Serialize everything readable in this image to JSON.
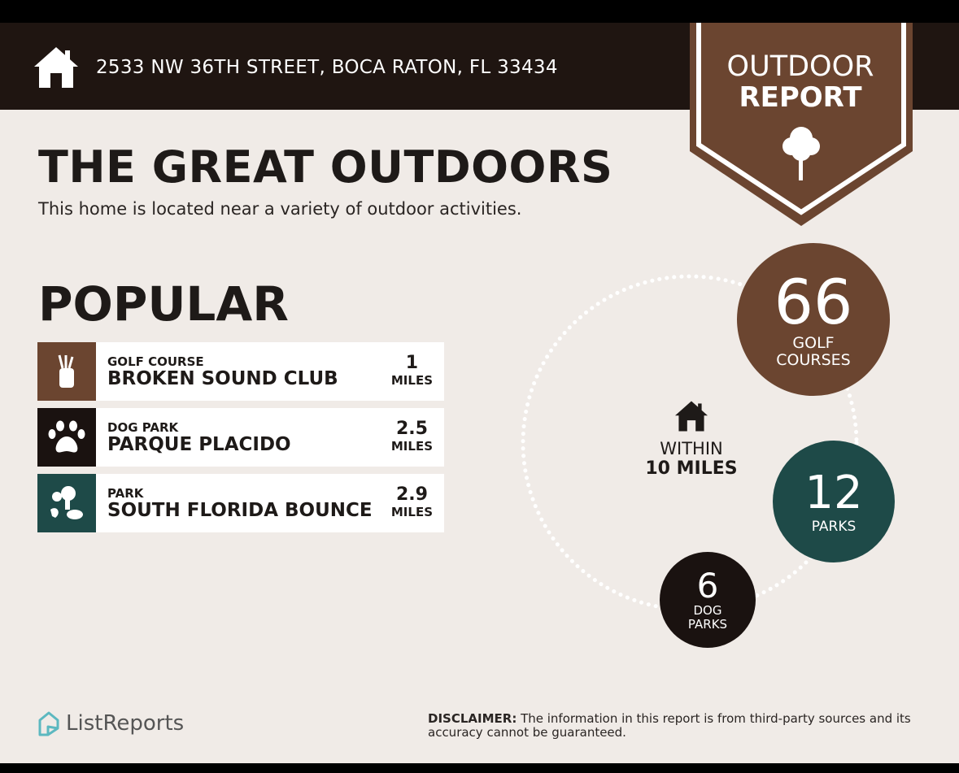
{
  "header": {
    "address": "2533 NW 36TH STREET, BOCA RATON, FL 33434",
    "icon": "home-icon"
  },
  "badge": {
    "line1": "OUTDOOR",
    "line2": "REPORT",
    "icon": "tree-icon"
  },
  "title": "THE GREAT OUTDOORS",
  "subtitle": "This home is located near a variety of outdoor activities.",
  "popular": {
    "heading": "POPULAR",
    "items": [
      {
        "category": "GOLF COURSE",
        "name": "BROKEN SOUND CLUB",
        "distance": "1",
        "unit": "MILES",
        "icon": "golf-bag-icon",
        "color": "#6b4530"
      },
      {
        "category": "DOG PARK",
        "name": "PARQUE PLACIDO",
        "distance": "2.5",
        "unit": "MILES",
        "icon": "paw-icon",
        "color": "#1a1210"
      },
      {
        "category": "PARK",
        "name": "SOUTH FLORIDA BOUNCE",
        "distance": "2.9",
        "unit": "MILES",
        "icon": "park-icon",
        "color": "#1e4a48"
      }
    ]
  },
  "summary": {
    "within_label": "WITHIN",
    "within_value": "10 MILES",
    "golf": {
      "count": "66",
      "label1": "GOLF",
      "label2": "COURSES",
      "color": "#6b4530"
    },
    "parks": {
      "count": "12",
      "label1": "PARKS",
      "color": "#1e4a48"
    },
    "dog": {
      "count": "6",
      "label1": "DOG",
      "label2": "PARKS",
      "color": "#1a1210"
    }
  },
  "footer": {
    "logo": "ListReports",
    "disclaimer_label": "DISCLAIMER:",
    "disclaimer_text": " The information in this report is from third-party sources and its accuracy cannot be guaranteed."
  }
}
